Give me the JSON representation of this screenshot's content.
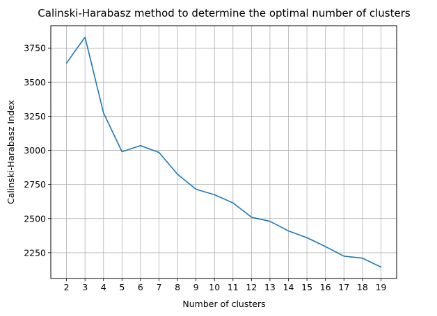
{
  "chart_data": {
    "type": "line",
    "title": "Calinski-Harabasz method to determine the optimal number of clusters",
    "xlabel": "Number of clusters",
    "ylabel": "Calinski-Harabasz Index",
    "x": [
      2,
      3,
      4,
      5,
      6,
      7,
      8,
      9,
      10,
      11,
      12,
      13,
      14,
      15,
      16,
      17,
      18,
      19
    ],
    "series": [
      {
        "values": [
          3640,
          3830,
          3275,
          2990,
          3035,
          2985,
          2825,
          2715,
          2675,
          2615,
          2510,
          2480,
          2410,
          2360,
          2295,
          2225,
          2210,
          2145
        ]
      }
    ],
    "xticks": [
      2,
      3,
      4,
      5,
      6,
      7,
      8,
      9,
      10,
      11,
      12,
      13,
      14,
      15,
      16,
      17,
      18,
      19
    ],
    "yticks": [
      2250,
      2500,
      2750,
      3000,
      3250,
      3500,
      3750
    ],
    "xlim": [
      1.15,
      19.85
    ],
    "ylim": [
      2061,
      3914
    ],
    "grid": true,
    "line_color": "#1f77b4"
  }
}
